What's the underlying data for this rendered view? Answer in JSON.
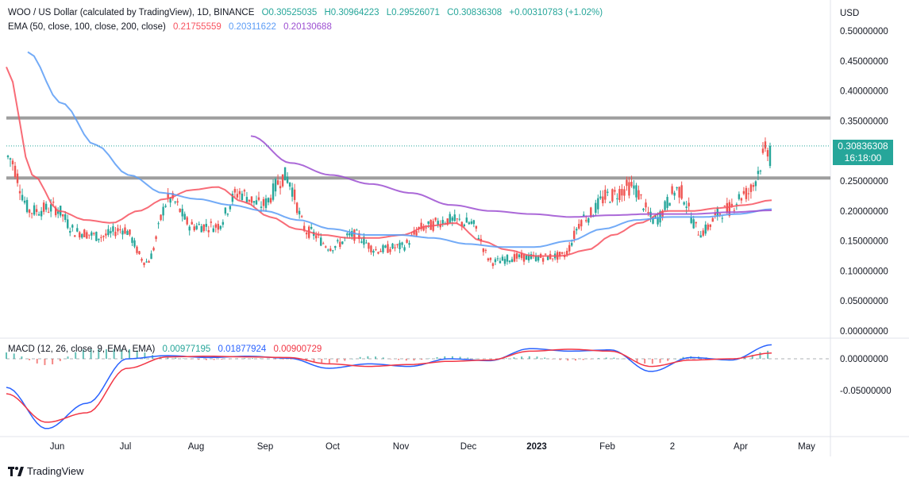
{
  "header": {
    "symbol": "WOO / US Dollar (calculated by TradingView), 1D, BINANCE",
    "open": "O0.30525035",
    "high": "H0.30964223",
    "low": "L0.29526071",
    "close": "C0.30836308",
    "change": "+0.00310783 (+1.02%)"
  },
  "ema_legend": {
    "label": "EMA (50, close, 100, close, 200, close)",
    "ema50": "0.21755559",
    "ema100": "0.20311622",
    "ema200": "0.20130688"
  },
  "macd_legend": {
    "label": "MACD (12, 26, close, 9, EMA, EMA)",
    "hist": "0.00977195",
    "macd": "0.01877924",
    "signal": "0.00900729"
  },
  "price_axis": {
    "currency": "USD",
    "ticks": [
      "0.50000000",
      "0.45000000",
      "0.40000000",
      "0.35000000",
      "0.25000000",
      "0.20000000",
      "0.15000000",
      "0.10000000",
      "0.05000000",
      "0.00000000"
    ]
  },
  "macd_axis": {
    "ticks": [
      "0.00000000",
      "-0.05000000"
    ]
  },
  "time_axis": {
    "labels": [
      "Jun",
      "Jul",
      "Aug",
      "Sep",
      "Oct",
      "Nov",
      "Dec",
      "2023",
      "Feb",
      "2",
      "Apr",
      "May"
    ]
  },
  "last_price": {
    "value": "0.30836308",
    "countdown": "16:18:00"
  },
  "branding": "TradingView",
  "colors": {
    "up": "#26a69a",
    "down": "#ef5350",
    "ema50": "#f7525f",
    "ema100": "#5b9cf6",
    "ema200": "#9c4fd1",
    "macd": "#2962ff",
    "signal": "#f23645",
    "hist_up": "#26a69a",
    "hist_down": "#ef5350",
    "level_line": "#9e9e9e"
  },
  "chart_data": {
    "type": "candlestick",
    "y_range": [
      0,
      0.5
    ],
    "levels": [
      0.355,
      0.255
    ],
    "last_close": 0.30836308,
    "candle_anchors": [
      [
        0.3,
        0.28
      ],
      [
        0.2,
        0.2
      ],
      [
        0.22,
        0.19
      ],
      [
        0.17,
        0.16
      ],
      [
        0.155,
        0.16
      ],
      [
        0.2,
        0.14
      ],
      [
        0.11,
        0.12
      ],
      [
        0.24,
        0.2
      ],
      [
        0.16,
        0.19
      ],
      [
        0.18,
        0.17
      ],
      [
        0.25,
        0.21
      ],
      [
        0.19,
        0.23
      ],
      [
        0.27,
        0.245
      ],
      [
        0.18,
        0.15
      ],
      [
        0.14,
        0.14
      ],
      [
        0.17,
        0.15
      ],
      [
        0.14,
        0.13
      ],
      [
        0.14,
        0.14
      ],
      [
        0.17,
        0.175
      ],
      [
        0.19,
        0.18
      ],
      [
        0.18,
        0.18
      ],
      [
        0.11,
        0.12
      ],
      [
        0.12,
        0.125
      ],
      [
        0.125,
        0.12
      ],
      [
        0.13,
        0.12
      ],
      [
        0.18,
        0.2
      ],
      [
        0.21,
        0.24
      ],
      [
        0.26,
        0.22
      ],
      [
        0.2,
        0.17
      ],
      [
        0.25,
        0.22
      ],
      [
        0.16,
        0.17
      ],
      [
        0.21,
        0.19
      ],
      [
        0.22,
        0.24
      ],
      [
        0.305,
        0.308
      ]
    ],
    "ema50_anchors": [
      [
        0.44
      ],
      [
        0.26
      ],
      [
        0.2
      ],
      [
        0.185
      ],
      [
        0.18
      ],
      [
        0.2
      ],
      [
        0.22
      ],
      [
        0.235
      ],
      [
        0.24
      ],
      [
        0.215
      ],
      [
        0.19
      ],
      [
        0.17
      ],
      [
        0.16
      ],
      [
        0.155
      ],
      [
        0.155
      ],
      [
        0.16
      ],
      [
        0.175
      ],
      [
        0.18
      ],
      [
        0.15
      ],
      [
        0.135
      ],
      [
        0.125
      ],
      [
        0.125
      ],
      [
        0.135
      ],
      [
        0.16
      ],
      [
        0.18
      ],
      [
        0.2
      ],
      [
        0.2
      ],
      [
        0.205
      ],
      [
        0.21
      ],
      [
        0.218
      ]
    ],
    "ema100_anchors": [
      [
        0.465
      ],
      [
        0.38
      ],
      [
        0.31
      ],
      [
        0.26
      ],
      [
        0.23
      ],
      [
        0.22
      ],
      [
        0.21
      ],
      [
        0.2
      ],
      [
        0.185
      ],
      [
        0.17
      ],
      [
        0.16
      ],
      [
        0.16
      ],
      [
        0.155
      ],
      [
        0.145
      ],
      [
        0.14
      ],
      [
        0.14
      ],
      [
        0.15
      ],
      [
        0.17
      ],
      [
        0.185
      ],
      [
        0.19
      ],
      [
        0.19
      ],
      [
        0.195
      ],
      [
        0.203
      ]
    ],
    "ema200_anchors": [
      [
        0.325
      ],
      [
        0.28
      ],
      [
        0.26
      ],
      [
        0.245
      ],
      [
        0.23
      ],
      [
        0.21
      ],
      [
        0.2
      ],
      [
        0.195
      ],
      [
        0.19
      ],
      [
        0.193
      ],
      [
        0.195
      ],
      [
        0.195
      ],
      [
        0.198
      ],
      [
        0.201
      ]
    ],
    "macd_range": [
      -0.12,
      0.03
    ]
  }
}
